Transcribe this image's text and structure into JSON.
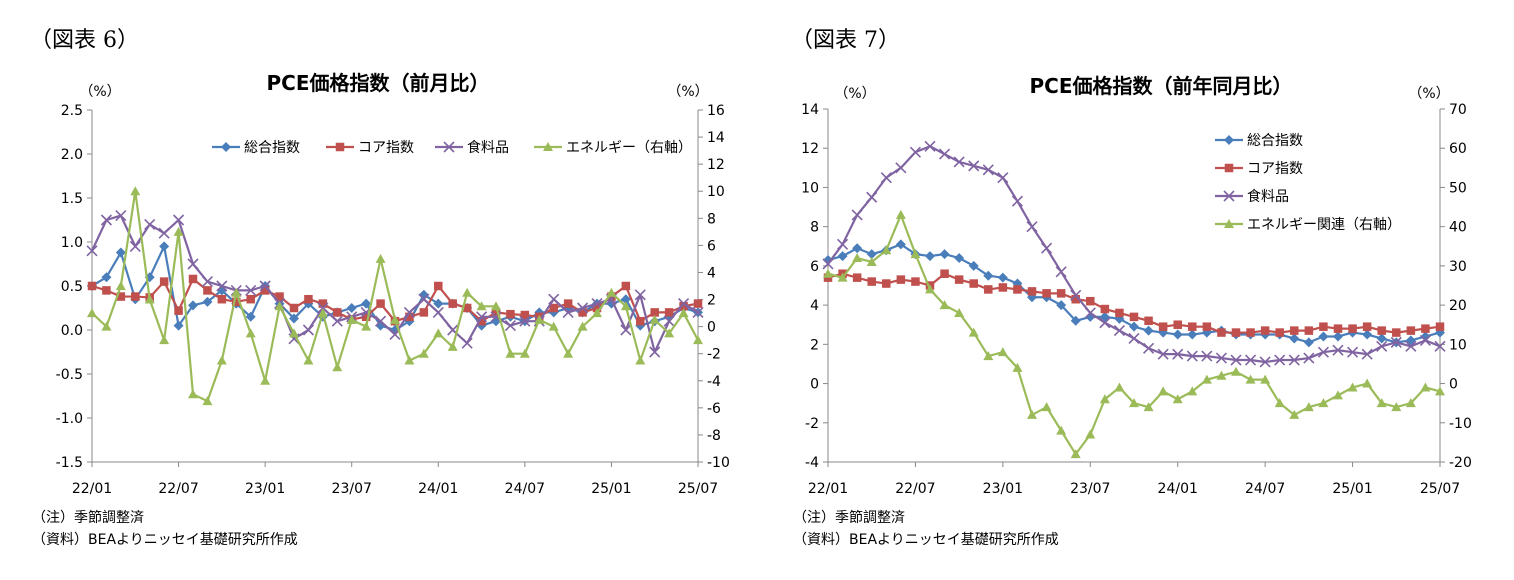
{
  "charts": [
    {
      "fig_label": "（図表 6）",
      "note_adj": "（注）季節調整済",
      "note_src": "（資料）BEAよりニッセイ基礎研究所作成"
    },
    {
      "fig_label": "（図表 7）",
      "note_adj": "（注）季節調整済",
      "note_src": "（資料）BEAよりニッセイ基礎研究所作成"
    }
  ],
  "chart_data": [
    {
      "type": "line",
      "title": "PCE価格指数（前月比）",
      "left_unit": "（%）",
      "right_unit": "（%）",
      "x_tick_labels": [
        "22/01",
        "22/07",
        "23/01",
        "23/07",
        "24/01",
        "24/07",
        "25/01",
        "25/07"
      ],
      "x_tick_months": [
        0,
        6,
        12,
        18,
        24,
        30,
        36,
        42
      ],
      "x_range": [
        0,
        42
      ],
      "left_axis": {
        "min": -1.5,
        "max": 2.5,
        "step": 0.5,
        "labels": [
          "-1.5",
          "-1.0",
          "-0.5",
          "0.0",
          "0.5",
          "1.0",
          "1.5",
          "2.0",
          "2.5"
        ]
      },
      "right_axis": {
        "min": -10,
        "max": 16,
        "step": 2,
        "labels": [
          "-10",
          "-8",
          "-6",
          "-4",
          "-2",
          "0",
          "2",
          "4",
          "6",
          "8",
          "10",
          "12",
          "14",
          "16"
        ]
      },
      "legend_position": "top",
      "series": [
        {
          "name": "総合指数",
          "color": "#4a7ebb",
          "marker": "diamond",
          "axis": "left",
          "values": [
            0.5,
            0.6,
            0.88,
            0.35,
            0.6,
            0.95,
            0.05,
            0.28,
            0.32,
            0.45,
            0.3,
            0.15,
            0.5,
            0.3,
            0.13,
            0.3,
            0.15,
            0.2,
            0.25,
            0.3,
            0.05,
            0.0,
            0.1,
            0.4,
            0.3,
            0.3,
            0.25,
            0.05,
            0.1,
            0.15,
            0.1,
            0.2,
            0.2,
            0.25,
            0.2,
            0.3,
            0.3,
            0.35,
            0.05,
            0.1,
            0.15,
            0.25,
            0.2
          ]
        },
        {
          "name": "コア指数",
          "color": "#c0504d",
          "marker": "square",
          "axis": "left",
          "values": [
            0.5,
            0.45,
            0.38,
            0.38,
            0.37,
            0.55,
            0.22,
            0.58,
            0.45,
            0.35,
            0.32,
            0.35,
            0.45,
            0.38,
            0.25,
            0.35,
            0.3,
            0.2,
            0.12,
            0.15,
            0.3,
            0.1,
            0.15,
            0.2,
            0.5,
            0.3,
            0.25,
            0.1,
            0.2,
            0.18,
            0.17,
            0.15,
            0.25,
            0.3,
            0.2,
            0.25,
            0.38,
            0.5,
            0.1,
            0.2,
            0.2,
            0.27,
            0.3
          ]
        },
        {
          "name": "食料品",
          "color": "#8064a2",
          "marker": "x",
          "axis": "left",
          "values": [
            0.9,
            1.25,
            1.3,
            0.95,
            1.2,
            1.1,
            1.25,
            0.75,
            0.55,
            0.5,
            0.45,
            0.45,
            0.5,
            0.3,
            -0.1,
            0.0,
            0.25,
            0.1,
            0.15,
            0.2,
            0.1,
            -0.05,
            0.2,
            0.35,
            0.2,
            0.0,
            -0.15,
            0.15,
            0.15,
            0.05,
            0.1,
            0.1,
            0.35,
            0.2,
            0.25,
            0.3,
            0.35,
            0.0,
            0.4,
            -0.25,
            0.1,
            0.3,
            0.2
          ]
        },
        {
          "name": "エネルギー（右軸）",
          "color": "#9bbb59",
          "marker": "triangle",
          "axis": "right",
          "values": [
            1,
            0,
            3,
            10,
            2,
            -1,
            7,
            -5,
            -5.5,
            -2.5,
            2.5,
            -0.5,
            -4,
            1.5,
            -0.5,
            -2.5,
            1.0,
            -3.0,
            0.5,
            0.0,
            5.0,
            0.5,
            -2.5,
            -2.0,
            -0.5,
            -1.5,
            2.5,
            1.5,
            1.5,
            -2.0,
            -2.0,
            0.5,
            0.0,
            -2.0,
            0.0,
            1.0,
            2.5,
            1.5,
            -2.5,
            0.5,
            -0.5,
            1.0,
            -1.0
          ]
        }
      ]
    },
    {
      "type": "line",
      "title": "PCE価格指数（前年同月比）",
      "left_unit": "（%）",
      "right_unit": "（%）",
      "x_tick_labels": [
        "22/01",
        "22/07",
        "23/01",
        "23/07",
        "24/01",
        "24/07",
        "25/01",
        "25/07"
      ],
      "x_tick_months": [
        0,
        6,
        12,
        18,
        24,
        30,
        36,
        42
      ],
      "x_range": [
        0,
        42
      ],
      "left_axis": {
        "min": -4,
        "max": 14,
        "step": 2,
        "labels": [
          "-4",
          "-2",
          "0",
          "2",
          "4",
          "6",
          "8",
          "10",
          "12",
          "14"
        ]
      },
      "right_axis": {
        "min": -20,
        "max": 70,
        "step": 10,
        "labels": [
          "-20",
          "-10",
          "0",
          "10",
          "20",
          "30",
          "40",
          "50",
          "60",
          "70"
        ]
      },
      "legend_position": "top-right",
      "series": [
        {
          "name": "総合指数",
          "color": "#4a7ebb",
          "marker": "diamond",
          "axis": "left",
          "values": [
            6.3,
            6.5,
            6.9,
            6.6,
            6.8,
            7.1,
            6.6,
            6.5,
            6.6,
            6.4,
            6.0,
            5.5,
            5.4,
            5.1,
            4.4,
            4.4,
            4.0,
            3.2,
            3.4,
            3.4,
            3.3,
            2.9,
            2.7,
            2.6,
            2.5,
            2.5,
            2.6,
            2.7,
            2.5,
            2.5,
            2.5,
            2.5,
            2.3,
            2.1,
            2.4,
            2.4,
            2.6,
            2.5,
            2.3,
            2.1,
            2.2,
            2.4,
            2.6
          ]
        },
        {
          "name": "コア指数",
          "color": "#c0504d",
          "marker": "square",
          "axis": "left",
          "values": [
            5.4,
            5.6,
            5.4,
            5.2,
            5.1,
            5.3,
            5.2,
            5.0,
            5.6,
            5.3,
            5.1,
            4.8,
            4.9,
            4.8,
            4.7,
            4.6,
            4.6,
            4.3,
            4.2,
            3.8,
            3.6,
            3.4,
            3.2,
            2.9,
            3.0,
            2.9,
            2.9,
            2.6,
            2.6,
            2.6,
            2.7,
            2.6,
            2.7,
            2.7,
            2.9,
            2.8,
            2.8,
            2.9,
            2.7,
            2.6,
            2.7,
            2.8,
            2.9
          ]
        },
        {
          "name": "食料品",
          "color": "#8064a2",
          "marker": "x",
          "axis": "left",
          "values": [
            6.1,
            7.1,
            8.6,
            9.5,
            10.5,
            11.0,
            11.8,
            12.1,
            11.7,
            11.3,
            11.1,
            10.9,
            10.5,
            9.3,
            8.0,
            6.9,
            5.7,
            4.5,
            3.6,
            3.1,
            2.7,
            2.3,
            1.8,
            1.5,
            1.5,
            1.4,
            1.4,
            1.3,
            1.2,
            1.2,
            1.1,
            1.2,
            1.2,
            1.3,
            1.6,
            1.7,
            1.6,
            1.5,
            1.9,
            2.1,
            1.9,
            2.2,
            1.9
          ]
        },
        {
          "name": "エネルギー関連（右軸）",
          "color": "#9bbb59",
          "marker": "triangle",
          "axis": "right",
          "values": [
            28,
            27,
            32,
            31,
            34,
            43,
            33,
            24,
            20,
            18,
            13,
            7,
            8,
            4,
            -8,
            -6,
            -12,
            -18,
            -13,
            -4,
            -1,
            -5,
            -6,
            -2,
            -4,
            -2,
            1,
            2,
            3,
            1,
            1,
            -5,
            -8,
            -6,
            -5,
            -3,
            -1,
            0,
            -5,
            -6,
            -5,
            -1,
            -2
          ]
        }
      ]
    }
  ]
}
